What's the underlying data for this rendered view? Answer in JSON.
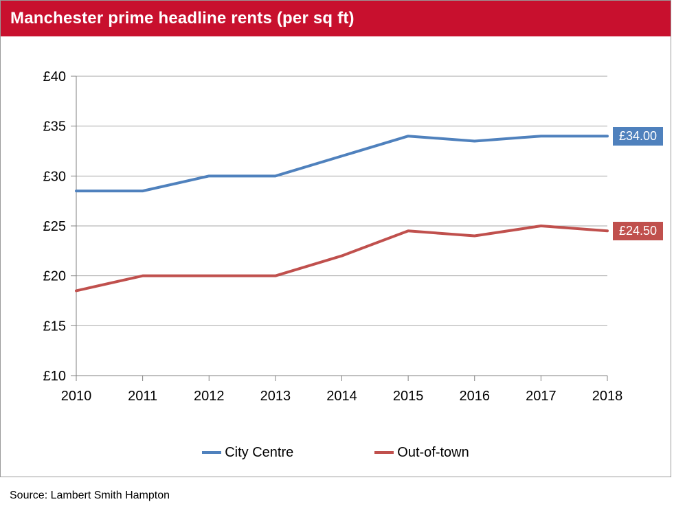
{
  "header": {
    "title": "Manchester prime headline rents (per sq ft)",
    "background": "#C8102E",
    "text_color": "#FFFFFF"
  },
  "source": {
    "label": "Source: Lambert Smith Hampton"
  },
  "chart_data": {
    "type": "line",
    "title": "Manchester prime headline rents (per sq ft)",
    "categories": [
      "2010",
      "2011",
      "2012",
      "2013",
      "2014",
      "2015",
      "2016",
      "2017",
      "2018"
    ],
    "series": [
      {
        "name": "City Centre",
        "color": "#4F81BD",
        "values": [
          28.5,
          28.5,
          30,
          30,
          32,
          34,
          33.5,
          34,
          34
        ],
        "end_label": "£34.00"
      },
      {
        "name": "Out-of-town",
        "color": "#C0504D",
        "values": [
          18.5,
          20,
          20,
          20,
          22,
          24.5,
          24,
          25,
          24.5
        ],
        "end_label": "£24.50"
      }
    ],
    "xlabel": "",
    "ylabel": "",
    "ylim": [
      10,
      40
    ],
    "y_tick_step": 5,
    "y_tick_labels": [
      "£40",
      "£35",
      "£30",
      "£25",
      "£20",
      "£15",
      "£10"
    ],
    "grid": true,
    "gridline_color": "#A6A6A6",
    "axis_color": "#808080",
    "tick_label_color": "#000000",
    "legend_position": "bottom"
  }
}
